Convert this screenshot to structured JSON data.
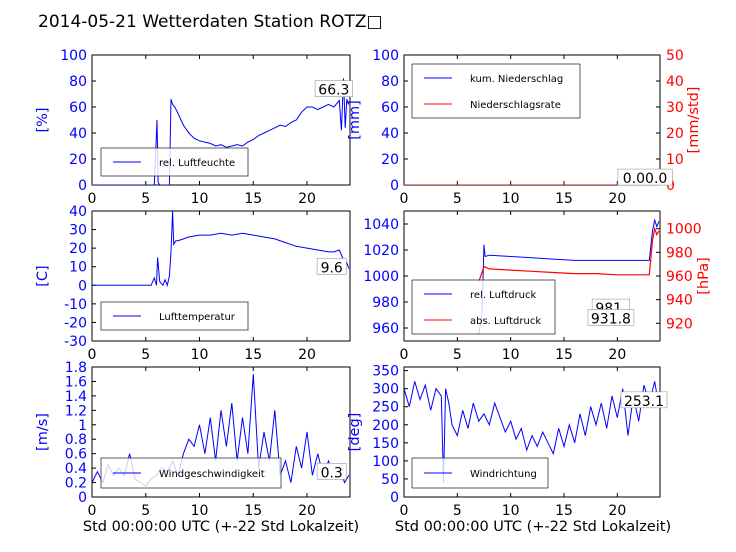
{
  "figure": {
    "title": "2014-05-21 Wetterdaten Station ROTZ□",
    "xlabel": "Std 00:00:00 UTC (+-22 Std Lokalzeit)",
    "colors": {
      "primary": "#0000ff",
      "secondary": "#ff0000",
      "axis": "#000000"
    }
  },
  "chart_data": [
    {
      "id": "humidity",
      "type": "line",
      "title": "",
      "xlabel": "",
      "ylabel": "[%]",
      "xlim": [
        0,
        24
      ],
      "ylim": [
        0,
        100
      ],
      "xticks": [
        0,
        5,
        10,
        15,
        20
      ],
      "yticks": [
        0,
        20,
        40,
        60,
        80,
        100
      ],
      "legend": {
        "placement": "lower-left"
      },
      "annotation": {
        "text": "66.3",
        "x": 22.5,
        "y": 71
      },
      "grid": false,
      "series": [
        {
          "name": "rel. Luftfeuchte",
          "color": "#0000ff",
          "x": [
            0,
            5.8,
            6.05,
            6.15,
            6.3,
            7.2,
            7.35,
            7.5,
            7.7,
            8.0,
            8.5,
            9.0,
            9.5,
            10.0,
            10.5,
            11.0,
            11.5,
            12.0,
            12.5,
            13.0,
            13.5,
            14.0,
            14.5,
            15.0,
            15.5,
            16.0,
            16.5,
            17.0,
            17.5,
            18.0,
            18.5,
            19.0,
            19.5,
            20.0,
            20.5,
            21.0,
            21.5,
            22.0,
            22.5,
            23.0,
            23.2,
            23.4,
            23.55,
            23.7,
            23.85
          ],
          "y": [
            0,
            0,
            50,
            2,
            0,
            0,
            66,
            62,
            60,
            55,
            46,
            40,
            36,
            34,
            33,
            32,
            30,
            31,
            29,
            30,
            31,
            30,
            33,
            35,
            38,
            40,
            42,
            44,
            46,
            45,
            48,
            50,
            56,
            60,
            60,
            58,
            60,
            62,
            60,
            65,
            42,
            82,
            44,
            66,
            62
          ]
        }
      ]
    },
    {
      "id": "precip",
      "type": "line",
      "title": "",
      "xlabel": "",
      "ylabel": "[mm]",
      "y2label": "[mm/std]",
      "xlim": [
        0,
        24
      ],
      "ylim": [
        0,
        100
      ],
      "y2lim": [
        0,
        50
      ],
      "xticks": [
        0,
        5,
        10,
        15,
        20
      ],
      "yticks": [
        0,
        20,
        40,
        60,
        80,
        100
      ],
      "y2ticks": [
        0,
        10,
        20,
        30,
        40,
        50
      ],
      "legend": {
        "placement": "upper-left"
      },
      "annotation": {
        "text": "0.00.0",
        "x": 22.6,
        "y": 3
      },
      "grid": false,
      "series": [
        {
          "name": "kum. Niederschlag",
          "color": "#0000ff",
          "axis": "left",
          "x": [
            0,
            24
          ],
          "y": [
            0,
            0
          ]
        },
        {
          "name": "Niederschlagsrate",
          "color": "#ff0000",
          "axis": "right",
          "x": [
            0,
            24
          ],
          "y": [
            0,
            0
          ]
        }
      ]
    },
    {
      "id": "temperature",
      "type": "line",
      "title": "",
      "xlabel": "",
      "ylabel": "[C]",
      "xlim": [
        0,
        24
      ],
      "ylim": [
        -30,
        40
      ],
      "xticks": [
        0,
        5,
        10,
        15,
        20
      ],
      "yticks": [
        -30,
        -20,
        -10,
        0,
        10,
        20,
        30,
        40
      ],
      "legend": {
        "placement": "lower-left"
      },
      "annotation": {
        "text": "9.6",
        "x": 22.3,
        "y": 8
      },
      "grid": false,
      "series": [
        {
          "name": "Lufttemperatur",
          "color": "#0000ff",
          "x": [
            0,
            5.5,
            5.8,
            6.0,
            6.1,
            6.3,
            6.6,
            6.8,
            7.0,
            7.2,
            7.35,
            7.5,
            7.6,
            7.8,
            8.0,
            8.5,
            9.0,
            10.0,
            11.0,
            12.0,
            13.0,
            14.0,
            15.0,
            16.0,
            17.0,
            18.0,
            19.0,
            20.0,
            21.0,
            22.0,
            22.5,
            23.0,
            23.3,
            23.5,
            23.7,
            23.9
          ],
          "y": [
            0,
            0,
            4,
            0,
            15,
            2,
            0,
            3,
            0,
            5,
            18,
            40,
            22,
            24,
            24,
            25,
            26,
            27,
            27,
            28,
            27,
            28,
            27,
            26,
            25,
            23,
            21,
            20,
            19,
            18,
            18,
            19,
            15,
            10,
            12,
            9
          ]
        }
      ]
    },
    {
      "id": "pressure",
      "type": "line",
      "title": "",
      "xlabel": "",
      "ylabel": "",
      "y2label": "[hPa]",
      "xlim": [
        0,
        24
      ],
      "ylim": [
        950,
        1050
      ],
      "y2lim": [
        905,
        1015
      ],
      "xticks": [
        0,
        5,
        10,
        15,
        20
      ],
      "yticks": [
        960,
        980,
        1000,
        1020,
        1040
      ],
      "y2ticks": [
        920,
        940,
        960,
        980,
        1000
      ],
      "legend": {
        "placement": "lower-left"
      },
      "annotations": [
        {
          "text": "981.",
          "x": 19.4,
          "y": 973
        },
        {
          "text": "931.8",
          "x": 19.4,
          "y": 965
        }
      ],
      "grid": false,
      "series": [
        {
          "name": "rel. Luftdruck",
          "color": "#0000ff",
          "axis": "left",
          "x": [
            7.0,
            7.3,
            7.5,
            7.6,
            8.0,
            10.0,
            12.0,
            14.0,
            16.0,
            18.0,
            20.0,
            22.0,
            23.0,
            23.3,
            23.5,
            23.7,
            23.9
          ],
          "y": [
            955,
            970,
            1024,
            1015,
            1016,
            1015,
            1014,
            1013,
            1012,
            1012,
            1012,
            1012,
            1012,
            1035,
            1043,
            1038,
            1042
          ]
        },
        {
          "name": "abs. Luftdruck",
          "color": "#ff0000",
          "axis": "right",
          "x": [
            7.0,
            7.5,
            8.0,
            10.0,
            12.0,
            14.0,
            16.0,
            18.0,
            20.0,
            22.0,
            23.0,
            23.3,
            23.5,
            23.7,
            23.9
          ],
          "y": [
            955,
            968,
            966,
            965,
            964,
            963,
            962,
            962,
            961,
            961,
            961,
            990,
            1000,
            995,
            998
          ]
        }
      ]
    },
    {
      "id": "windspeed",
      "type": "line",
      "title": "",
      "xlabel": "Std 00:00:00 UTC (+-22 Std Lokalzeit)",
      "ylabel": "[m/s]",
      "xlim": [
        0,
        24
      ],
      "ylim": [
        0,
        1.8
      ],
      "xticks": [
        0,
        5,
        10,
        15,
        20
      ],
      "yticks": [
        0,
        0.2,
        0.4,
        0.6,
        0.8,
        1.0,
        1.2,
        1.4,
        1.6,
        1.8
      ],
      "legend": {
        "placement": "lower-left"
      },
      "annotation": {
        "text": "0.3",
        "x": 22.3,
        "y": 0.3
      },
      "grid": false,
      "series": [
        {
          "name": "Windgeschwindigkeit",
          "color": "#0000ff",
          "x": [
            0,
            0.5,
            1.0,
            1.5,
            2.0,
            2.5,
            3.0,
            3.5,
            4.0,
            4.5,
            5.0,
            5.5,
            6.0,
            6.5,
            7.0,
            7.5,
            8.0,
            8.5,
            9.0,
            9.5,
            10.0,
            10.5,
            11.0,
            11.5,
            12.0,
            12.5,
            13.0,
            13.5,
            14.0,
            14.5,
            15.0,
            15.5,
            16.0,
            16.5,
            17.0,
            17.5,
            18.0,
            18.5,
            19.0,
            19.5,
            20.0,
            20.5,
            21.0,
            21.5,
            22.0,
            22.5,
            23.0,
            23.5,
            23.9
          ],
          "y": [
            0.2,
            0.35,
            0.2,
            0.45,
            0.3,
            0.4,
            0.3,
            0.6,
            0.25,
            0.2,
            0.15,
            0.25,
            0.3,
            0.4,
            0.35,
            0.5,
            0.3,
            0.6,
            0.8,
            0.7,
            1.0,
            0.6,
            1.1,
            0.5,
            1.2,
            0.7,
            1.3,
            0.5,
            1.1,
            0.6,
            1.7,
            0.4,
            0.9,
            0.5,
            1.2,
            0.3,
            0.5,
            0.2,
            0.7,
            0.4,
            0.9,
            0.3,
            0.6,
            0.3,
            0.5,
            0.3,
            0.4,
            0.2,
            0.3
          ]
        }
      ]
    },
    {
      "id": "winddir",
      "type": "line",
      "title": "",
      "xlabel": "Std 00:00:00 UTC (+-22 Std Lokalzeit)",
      "ylabel": "[deg]",
      "xlim": [
        0,
        24
      ],
      "ylim": [
        0,
        360
      ],
      "xticks": [
        0,
        5,
        10,
        15,
        20
      ],
      "yticks": [
        0,
        50,
        100,
        150,
        200,
        250,
        300,
        350
      ],
      "legend": {
        "placement": "lower-left"
      },
      "annotation": {
        "text": "253.1",
        "x": 22.5,
        "y": 258
      },
      "grid": false,
      "series": [
        {
          "name": "Windrichtung",
          "color": "#0000ff",
          "x": [
            0,
            0.5,
            1.0,
            1.5,
            2.0,
            2.5,
            3.0,
            3.5,
            3.7,
            3.9,
            4.2,
            4.5,
            5.0,
            5.5,
            6.0,
            6.5,
            7.0,
            7.5,
            8.0,
            8.5,
            9.0,
            9.5,
            10.0,
            10.5,
            11.0,
            11.5,
            12.0,
            12.5,
            13.0,
            13.5,
            14.0,
            14.5,
            15.0,
            15.5,
            16.0,
            16.5,
            17.0,
            17.5,
            18.0,
            18.5,
            19.0,
            19.5,
            20.0,
            20.5,
            21.0,
            21.5,
            22.0,
            22.5,
            23.0,
            23.5,
            23.9
          ],
          "y": [
            300,
            250,
            320,
            270,
            310,
            240,
            300,
            280,
            40,
            300,
            260,
            200,
            170,
            240,
            190,
            260,
            210,
            230,
            200,
            260,
            220,
            180,
            210,
            160,
            190,
            130,
            170,
            140,
            180,
            150,
            120,
            190,
            140,
            200,
            150,
            230,
            170,
            250,
            200,
            260,
            190,
            280,
            220,
            300,
            170,
            280,
            210,
            310,
            260,
            320,
            250
          ]
        }
      ]
    }
  ]
}
